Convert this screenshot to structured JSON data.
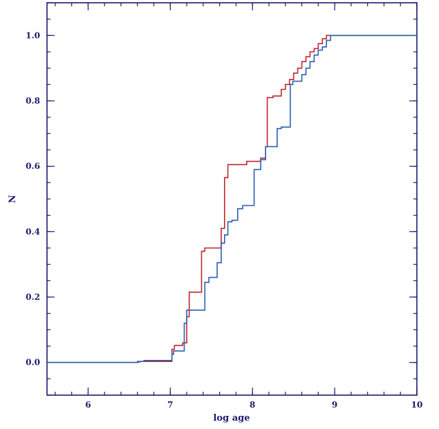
{
  "chart_data": {
    "type": "line",
    "step": true,
    "xlabel": "log age",
    "ylabel": "N",
    "xlim": [
      5.5,
      10
    ],
    "ylim": [
      -0.1,
      1.1
    ],
    "x_ticks": [
      6,
      7,
      8,
      9,
      10
    ],
    "x_tick_labels": [
      "6",
      "7",
      "8",
      "9",
      "10"
    ],
    "y_ticks": [
      0.0,
      0.2,
      0.4,
      0.6,
      0.8,
      1.0
    ],
    "y_tick_labels": [
      "0.0",
      "0.2",
      "0.4",
      "0.6",
      "0.8",
      "1.0"
    ],
    "grid": false,
    "axis_color": "#1a1a6e",
    "series": [
      {
        "color": "#c0262d",
        "points": [
          [
            5.5,
            0.0
          ],
          [
            6.6,
            0.0
          ],
          [
            6.65,
            0.003
          ],
          [
            7.02,
            0.003
          ],
          [
            7.02,
            0.04
          ],
          [
            7.05,
            0.04
          ],
          [
            7.05,
            0.052
          ],
          [
            7.15,
            0.052
          ],
          [
            7.15,
            0.06
          ],
          [
            7.2,
            0.06
          ],
          [
            7.2,
            0.14
          ],
          [
            7.23,
            0.14
          ],
          [
            7.23,
            0.215
          ],
          [
            7.38,
            0.215
          ],
          [
            7.38,
            0.34
          ],
          [
            7.42,
            0.34
          ],
          [
            7.42,
            0.35
          ],
          [
            7.62,
            0.35
          ],
          [
            7.62,
            0.41
          ],
          [
            7.66,
            0.41
          ],
          [
            7.66,
            0.565
          ],
          [
            7.7,
            0.565
          ],
          [
            7.7,
            0.605
          ],
          [
            7.93,
            0.605
          ],
          [
            7.93,
            0.615
          ],
          [
            8.1,
            0.615
          ],
          [
            8.1,
            0.625
          ],
          [
            8.16,
            0.625
          ],
          [
            8.16,
            0.66
          ],
          [
            8.18,
            0.66
          ],
          [
            8.18,
            0.81
          ],
          [
            8.25,
            0.81
          ],
          [
            8.25,
            0.815
          ],
          [
            8.35,
            0.815
          ],
          [
            8.35,
            0.835
          ],
          [
            8.4,
            0.835
          ],
          [
            8.4,
            0.85
          ],
          [
            8.45,
            0.85
          ],
          [
            8.45,
            0.865
          ],
          [
            8.5,
            0.865
          ],
          [
            8.5,
            0.885
          ],
          [
            8.55,
            0.885
          ],
          [
            8.55,
            0.9
          ],
          [
            8.6,
            0.9
          ],
          [
            8.6,
            0.92
          ],
          [
            8.65,
            0.92
          ],
          [
            8.65,
            0.935
          ],
          [
            8.7,
            0.935
          ],
          [
            8.7,
            0.95
          ],
          [
            8.75,
            0.95
          ],
          [
            8.75,
            0.96
          ],
          [
            8.8,
            0.96
          ],
          [
            8.8,
            0.975
          ],
          [
            8.85,
            0.975
          ],
          [
            8.85,
            0.99
          ],
          [
            8.9,
            0.99
          ],
          [
            8.9,
            1.0
          ],
          [
            10,
            1.0
          ]
        ]
      },
      {
        "color": "#2a5fb0",
        "points": [
          [
            5.5,
            0.0
          ],
          [
            6.6,
            0.0
          ],
          [
            6.6,
            0.003
          ],
          [
            6.68,
            0.003
          ],
          [
            6.68,
            0.006
          ],
          [
            7.02,
            0.006
          ],
          [
            7.02,
            0.025
          ],
          [
            7.04,
            0.025
          ],
          [
            7.04,
            0.035
          ],
          [
            7.17,
            0.035
          ],
          [
            7.17,
            0.12
          ],
          [
            7.2,
            0.12
          ],
          [
            7.2,
            0.16
          ],
          [
            7.42,
            0.16
          ],
          [
            7.42,
            0.245
          ],
          [
            7.47,
            0.245
          ],
          [
            7.47,
            0.26
          ],
          [
            7.57,
            0.26
          ],
          [
            7.57,
            0.305
          ],
          [
            7.62,
            0.305
          ],
          [
            7.62,
            0.365
          ],
          [
            7.66,
            0.365
          ],
          [
            7.66,
            0.39
          ],
          [
            7.7,
            0.39
          ],
          [
            7.7,
            0.43
          ],
          [
            7.75,
            0.43
          ],
          [
            7.75,
            0.435
          ],
          [
            7.82,
            0.435
          ],
          [
            7.82,
            0.47
          ],
          [
            7.88,
            0.47
          ],
          [
            7.88,
            0.48
          ],
          [
            8.02,
            0.48
          ],
          [
            8.02,
            0.59
          ],
          [
            8.1,
            0.59
          ],
          [
            8.1,
            0.62
          ],
          [
            8.16,
            0.62
          ],
          [
            8.16,
            0.66
          ],
          [
            8.3,
            0.66
          ],
          [
            8.3,
            0.715
          ],
          [
            8.35,
            0.715
          ],
          [
            8.35,
            0.72
          ],
          [
            8.46,
            0.72
          ],
          [
            8.46,
            0.85
          ],
          [
            8.49,
            0.85
          ],
          [
            8.49,
            0.86
          ],
          [
            8.6,
            0.86
          ],
          [
            8.6,
            0.88
          ],
          [
            8.65,
            0.88
          ],
          [
            8.65,
            0.9
          ],
          [
            8.7,
            0.9
          ],
          [
            8.7,
            0.92
          ],
          [
            8.75,
            0.92
          ],
          [
            8.75,
            0.94
          ],
          [
            8.8,
            0.94
          ],
          [
            8.8,
            0.955
          ],
          [
            8.85,
            0.955
          ],
          [
            8.85,
            0.965
          ],
          [
            8.9,
            0.965
          ],
          [
            8.9,
            0.985
          ],
          [
            8.95,
            0.985
          ],
          [
            8.95,
            1.0
          ],
          [
            10,
            1.0
          ]
        ]
      }
    ]
  }
}
